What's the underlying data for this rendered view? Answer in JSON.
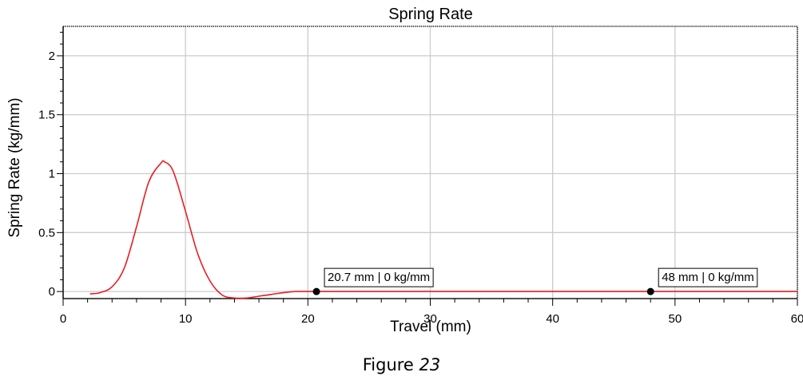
{
  "chart_data": {
    "type": "line",
    "title": "Spring Rate",
    "xlabel": "Travel (mm)",
    "ylabel": "Spring Rate (kg/mm)",
    "xlim": [
      0,
      60
    ],
    "ylim": [
      -0.06,
      2.25
    ],
    "x_ticks": [
      "0",
      "10",
      "20",
      "30",
      "40",
      "50",
      "60"
    ],
    "y_ticks": [
      "0",
      "0.5",
      "1",
      "1.5",
      "2"
    ],
    "grid": true,
    "line_color": "#e81e25",
    "series": [
      {
        "x": [
          2.2,
          3,
          4,
          5,
          6,
          7,
          8,
          8.3,
          9,
          10,
          11,
          12,
          13,
          14,
          15,
          16,
          17,
          18,
          19,
          20,
          21,
          25,
          30,
          40,
          48,
          55,
          60
        ],
        "values": [
          -0.02,
          -0.01,
          0.04,
          0.2,
          0.55,
          0.93,
          1.09,
          1.1,
          1.02,
          0.68,
          0.32,
          0.09,
          -0.03,
          -0.055,
          -0.055,
          -0.04,
          -0.025,
          -0.01,
          0.0,
          0.0,
          0.0,
          0.0,
          0.0,
          0.0,
          0.0,
          0.0,
          0.0
        ]
      }
    ],
    "markers": [
      {
        "x": 20.7,
        "y": 0,
        "label": "20.7 mm | 0 kg/mm"
      },
      {
        "x": 48,
        "y": 0,
        "label": "48 mm | 0 kg/mm"
      }
    ]
  },
  "caption": {
    "prefix": "Figure ",
    "number": "23"
  }
}
